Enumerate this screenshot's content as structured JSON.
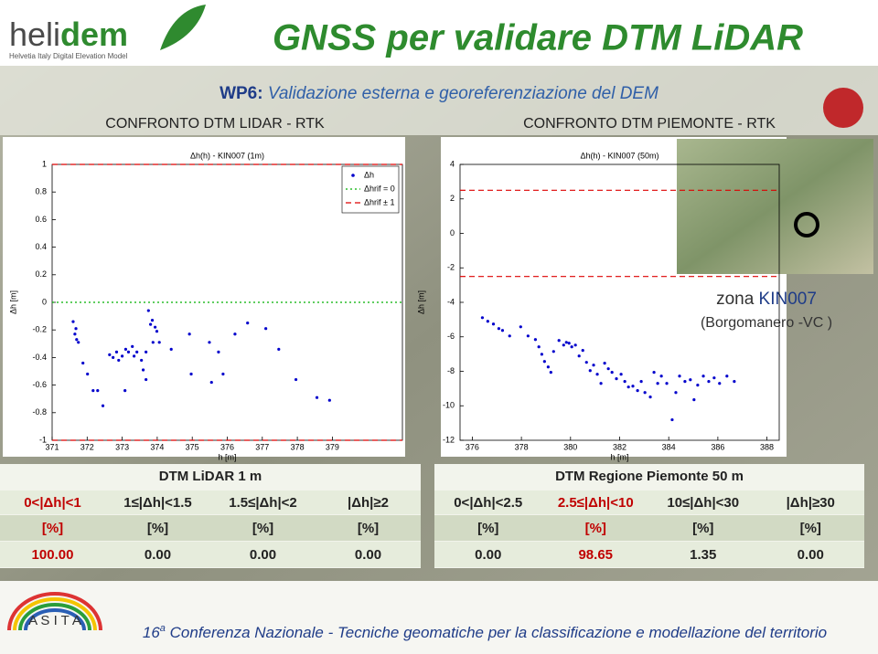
{
  "header": {
    "logo": "heli",
    "logo_bold": "dem",
    "logo_tagline": "Helvetia Italy Digital Elevation Model",
    "title": "GNSS per validare DTM LiDAR",
    "wp": "WP6:",
    "subtitle": "Validazione esterna e georeferenziazione del DEM"
  },
  "panels": [
    "CONFRONTO DTM LIDAR - RTK",
    "CONFRONTO DTM PIEMONTE - RTK"
  ],
  "chart_data": [
    {
      "type": "scatter",
      "title": "Δh(h) - KIN007 (1m)",
      "x_label": "h [m]",
      "y_label": "Δh [m]",
      "xlim": [
        371,
        381
      ],
      "ylim": [
        -1,
        1
      ],
      "xticks": [
        371,
        372,
        373,
        374,
        375,
        376,
        377,
        378,
        379
      ],
      "yticks": [
        1,
        0.8,
        0.6,
        0.4,
        0.2,
        0,
        -0.2,
        -0.4,
        -0.6,
        -0.8,
        -1
      ],
      "legend": "upper right",
      "series": [
        {
          "name": "Δh",
          "color": "#0000cc",
          "x": [
            371.6,
            371.65,
            371.7,
            371.75,
            371.68,
            371.88,
            372.01,
            372.17,
            372.3,
            372.45,
            372.64,
            372.74,
            372.84,
            372.9,
            373.0,
            373.1,
            373.18,
            373.29,
            373.34,
            373.42,
            373.55,
            373.6,
            373.68,
            373.75,
            373.81,
            373.86,
            373.94,
            373.99,
            374.06,
            373.88,
            373.68,
            374.4,
            374.92,
            374.97,
            375.49,
            375.55,
            375.75,
            375.88,
            376.22,
            376.58,
            377.1,
            377.47,
            377.96,
            378.56,
            378.92,
            373.08
          ],
          "values": [
            -0.14,
            -0.23,
            -0.27,
            -0.29,
            -0.19,
            -0.44,
            -0.52,
            -0.64,
            -0.64,
            -0.75,
            -0.38,
            -0.4,
            -0.36,
            -0.42,
            -0.39,
            -0.34,
            -0.36,
            -0.32,
            -0.39,
            -0.36,
            -0.42,
            -0.49,
            -0.36,
            -0.06,
            -0.16,
            -0.13,
            -0.18,
            -0.21,
            -0.29,
            -0.29,
            -0.56,
            -0.34,
            -0.23,
            -0.52,
            -0.29,
            -0.58,
            -0.36,
            -0.52,
            -0.23,
            -0.15,
            -0.19,
            -0.34,
            -0.56,
            -0.69,
            -0.71,
            -0.64
          ]
        }
      ],
      "reference_lines": [
        {
          "name": "Δhrif = 0",
          "y": [
            0
          ],
          "color": "#00b000",
          "dash": "2,3"
        },
        {
          "name": "Δhrif ± 1",
          "y": [
            1,
            -1
          ],
          "color": "#dd0000",
          "dash": "6,4"
        }
      ]
    },
    {
      "type": "scatter",
      "title": "Δh(h) - KIN007 (50m)",
      "x_label": "h [m]",
      "y_label": "Δh [m]",
      "xlim": [
        375.5,
        388.5
      ],
      "ylim": [
        -12,
        4
      ],
      "xticks": [
        376,
        378,
        380,
        382,
        384,
        386,
        388
      ],
      "yticks": [
        4,
        2,
        0,
        -2,
        -4,
        -6,
        -8,
        -10,
        -12
      ],
      "series": [
        {
          "color": "#0000cc",
          "x": [
            376.41,
            376.63,
            376.86,
            377.08,
            377.23,
            377.52,
            377.97,
            378.27,
            378.57,
            378.71,
            378.83,
            378.94,
            379.09,
            379.2,
            379.31,
            379.53,
            379.72,
            379.83,
            379.94,
            380.05,
            380.2,
            380.35,
            380.5,
            380.65,
            380.8,
            380.94,
            381.09,
            381.24,
            381.39,
            381.54,
            381.69,
            381.87,
            382.06,
            382.21,
            382.36,
            382.54,
            382.73,
            382.88,
            383.03,
            383.25,
            383.4,
            383.55,
            383.7,
            383.92,
            384.14,
            384.29,
            384.44,
            384.66,
            384.88,
            385.03,
            385.18,
            385.41,
            385.63,
            385.85,
            386.07,
            386.37,
            386.67
          ],
          "values": [
            -4.89,
            -5.1,
            -5.26,
            -5.52,
            -5.63,
            -5.95,
            -5.42,
            -5.95,
            -6.16,
            -6.58,
            -7.01,
            -7.43,
            -7.75,
            -8.06,
            -6.85,
            -6.21,
            -6.48,
            -6.32,
            -6.37,
            -6.58,
            -6.48,
            -7.11,
            -6.79,
            -7.48,
            -7.96,
            -7.64,
            -8.17,
            -8.7,
            -7.53,
            -7.85,
            -8.06,
            -8.43,
            -8.17,
            -8.59,
            -8.91,
            -8.86,
            -9.12,
            -8.59,
            -9.23,
            -9.49,
            -8.06,
            -8.7,
            -8.28,
            -8.7,
            -10.81,
            -9.23,
            -8.28,
            -8.59,
            -8.49,
            -9.65,
            -8.8,
            -8.28,
            -8.59,
            -8.38,
            -8.7,
            -8.28,
            -8.59
          ]
        }
      ],
      "reference_lines": [
        {
          "y": [
            2.5,
            -2.5
          ],
          "color": "#dd0000",
          "dash": "6,4"
        }
      ]
    }
  ],
  "map": {
    "zona": "zona",
    "station": "KIN007",
    "location": "(Borgomanero -VC )"
  },
  "tables": [
    {
      "caption": "DTM LiDAR 1 m",
      "columns": [
        "0<|Δh|<1",
        "1≤|Δh|<1.5",
        "1.5≤|Δh|<2",
        "|Δh|≥2"
      ],
      "units": [
        "[%]",
        "[%]",
        "[%]",
        "[%]"
      ],
      "values": [
        "100.00",
        "0.00",
        "0.00",
        "0.00"
      ],
      "column_colors": [
        "#c00000",
        "#222222",
        "#222222",
        "#222222"
      ]
    },
    {
      "caption": "DTM Regione Piemonte 50 m",
      "columns": [
        "0<|Δh|<2.5",
        "2.5≤|Δh|<10",
        "10≤|Δh|<30",
        "|Δh|≥30"
      ],
      "units": [
        "[%]",
        "[%]",
        "[%]",
        "[%]"
      ],
      "values": [
        "0.00",
        "98.65",
        "1.35",
        "0.00"
      ],
      "column_colors": [
        "#222222",
        "#c00000",
        "#222222",
        "#222222"
      ]
    }
  ],
  "footer": {
    "number": "16",
    "sup": "a",
    "text": " Conferenza Nazionale - Tecniche geomatiche per la classificazione e modellazione del territorio",
    "logo": "A S I T A"
  }
}
